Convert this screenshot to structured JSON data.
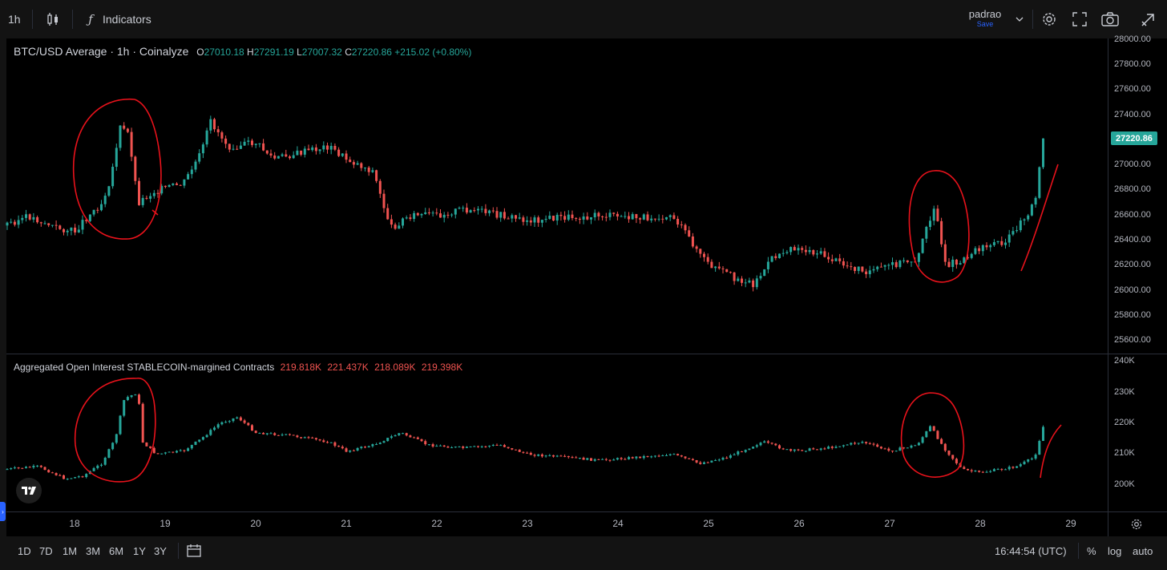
{
  "toolbar": {
    "interval": "1h",
    "indicators_label": "Indicators",
    "layout_name": "padrao",
    "save_label": "Save",
    "icons": [
      "candles-icon",
      "fx-icon",
      "chevron-down-icon",
      "gear-icon",
      "fullscreen-icon",
      "camera-icon",
      "publish-icon"
    ]
  },
  "main_legend": {
    "symbol": "BTC/USD Average · 1h · Coinalyze",
    "o_label": "O",
    "o": "27010.18",
    "h_label": "H",
    "h": "27291.19",
    "l_label": "L",
    "l": "27007.32",
    "c_label": "C",
    "c": "27220.86",
    "change": "+215.02 (+0.80%)"
  },
  "oi_legend": {
    "title": "Aggregated Open Interest STABLECOIN-margined Contracts",
    "values": [
      "219.818K",
      "221.437K",
      "218.089K",
      "219.398K"
    ]
  },
  "price_axis": {
    "ticks": [
      "28000.00",
      "27800.00",
      "27600.00",
      "27400.00",
      "27000.00",
      "26800.00",
      "26600.00",
      "26400.00",
      "26200.00",
      "26000.00",
      "25800.00",
      "25600.00"
    ],
    "current_price": "27220.86"
  },
  "oi_axis": {
    "ticks": [
      "240K",
      "230K",
      "220K",
      "210K",
      "200K"
    ]
  },
  "time_axis": {
    "ticks": [
      "18",
      "19",
      "20",
      "21",
      "22",
      "23",
      "24",
      "25",
      "26",
      "27",
      "28",
      "29"
    ]
  },
  "bottom_bar": {
    "ranges": [
      "1D",
      "7D",
      "1M",
      "3M",
      "6M",
      "1Y",
      "3Y"
    ],
    "clock": "16:44:54 (UTC)",
    "percent": "%",
    "log": "log",
    "auto": "auto"
  },
  "colors": {
    "up": "#26a69a",
    "down": "#ef5350",
    "annotation": "#e8121b",
    "background": "#000000"
  },
  "chart_data": [
    {
      "type": "candlestick",
      "title": "BTC/USD Average · 1h · Coinalyze",
      "ylim": [
        25500,
        28050
      ],
      "x_ticks": [
        "18",
        "19",
        "20",
        "21",
        "22",
        "23",
        "24",
        "25",
        "26",
        "27",
        "28",
        "29"
      ],
      "close_path": [
        [
          "17.2",
          26520
        ],
        [
          "17.5",
          26590
        ],
        [
          "17.8",
          26500
        ],
        [
          "18.0",
          26470
        ],
        [
          "18.1",
          26560
        ],
        [
          "18.3",
          26700
        ],
        [
          "18.4",
          26900
        ],
        [
          "18.5",
          27300
        ],
        [
          "18.6",
          27250
        ],
        [
          "18.7",
          26700
        ],
        [
          "18.9",
          26800
        ],
        [
          "19.2",
          26850
        ],
        [
          "19.4",
          27100
        ],
        [
          "19.5",
          27350
        ],
        [
          "19.7",
          27150
        ],
        [
          "20.0",
          27180
        ],
        [
          "20.2",
          27050
        ],
        [
          "20.5",
          27100
        ],
        [
          "20.8",
          27150
        ],
        [
          "21.0",
          27050
        ],
        [
          "21.3",
          26950
        ],
        [
          "21.4",
          26700
        ],
        [
          "21.5",
          26500
        ],
        [
          "21.7",
          26600
        ],
        [
          "22.0",
          26600
        ],
        [
          "22.3",
          26650
        ],
        [
          "22.7",
          26600
        ],
        [
          "23.0",
          26560
        ],
        [
          "23.3",
          26580
        ],
        [
          "23.8",
          26600
        ],
        [
          "24.2",
          26580
        ],
        [
          "24.6",
          26600
        ],
        [
          "24.8",
          26400
        ],
        [
          "25.0",
          26200
        ],
        [
          "25.3",
          26100
        ],
        [
          "25.5",
          26050
        ],
        [
          "25.7",
          26250
        ],
        [
          "25.9",
          26350
        ],
        [
          "26.2",
          26300
        ],
        [
          "26.5",
          26200
        ],
        [
          "26.8",
          26150
        ],
        [
          "27.0",
          26200
        ],
        [
          "27.3",
          26250
        ],
        [
          "27.5",
          26700
        ],
        [
          "27.6",
          26200
        ],
        [
          "27.8",
          26250
        ],
        [
          "28.0",
          26350
        ],
        [
          "28.3",
          26400
        ],
        [
          "28.6",
          26700
        ],
        [
          "28.7",
          27220.86
        ]
      ]
    },
    {
      "type": "candlestick",
      "title": "Aggregated Open Interest STABLECOIN-margined Contracts",
      "ylim": [
        195000,
        242000
      ],
      "unit": "K",
      "close_path": [
        [
          "17.2",
          205000
        ],
        [
          "17.6",
          206000
        ],
        [
          "17.9",
          202000
        ],
        [
          "18.1",
          203000
        ],
        [
          "18.3",
          207000
        ],
        [
          "18.45",
          215000
        ],
        [
          "18.55",
          228000
        ],
        [
          "18.7",
          230000
        ],
        [
          "18.75",
          214000
        ],
        [
          "18.9",
          210000
        ],
        [
          "19.2",
          211000
        ],
        [
          "19.4",
          215000
        ],
        [
          "19.6",
          220000
        ],
        [
          "19.8",
          222000
        ],
        [
          "20.0",
          217000
        ],
        [
          "20.4",
          216000
        ],
        [
          "20.8",
          214000
        ],
        [
          "21.0",
          211000
        ],
        [
          "21.3",
          213000
        ],
        [
          "21.6",
          217000
        ],
        [
          "21.9",
          213000
        ],
        [
          "22.3",
          212000
        ],
        [
          "22.7",
          213000
        ],
        [
          "23.0",
          210000
        ],
        [
          "23.4",
          209000
        ],
        [
          "23.8",
          208000
        ],
        [
          "24.2",
          209000
        ],
        [
          "24.6",
          210000
        ],
        [
          "24.9",
          207000
        ],
        [
          "25.2",
          209000
        ],
        [
          "25.6",
          214000
        ],
        [
          "25.9",
          211000
        ],
        [
          "26.3",
          212000
        ],
        [
          "26.7",
          214000
        ],
        [
          "27.0",
          211000
        ],
        [
          "27.3",
          213000
        ],
        [
          "27.45",
          219000
        ],
        [
          "27.6",
          212000
        ],
        [
          "27.8",
          205000
        ],
        [
          "28.0",
          204000
        ],
        [
          "28.4",
          206000
        ],
        [
          "28.6",
          209000
        ],
        [
          "28.7",
          219398
        ]
      ]
    }
  ]
}
